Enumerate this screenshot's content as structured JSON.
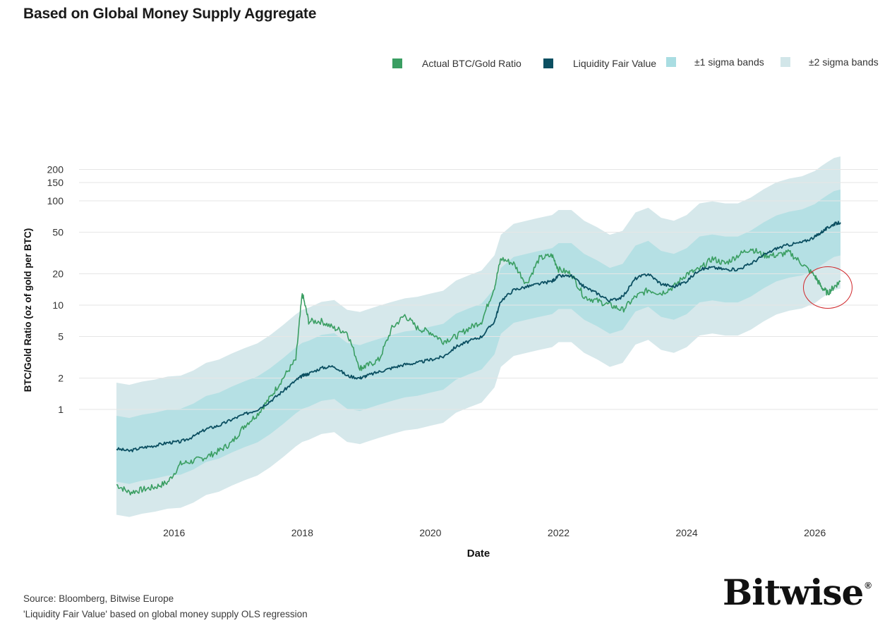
{
  "page": {
    "title": "Based on Global Money Supply Aggregate",
    "source": "Source: Bloomberg, Bitwise Europe",
    "note": "'Liquidity Fair Value' based on global money supply OLS regression",
    "logo_text": "Bitwise",
    "logo_mark": "®"
  },
  "legend": [
    {
      "label": "Actual BTC/Gold Ratio",
      "color": "#3a9e62"
    },
    {
      "label": "Liquidity Fair Value",
      "color": "#0b4f61"
    },
    {
      "label": "±1 sigma bands",
      "color": "#a9dde2"
    },
    {
      "label": "±2 sigma bands",
      "color": "#d2e6e9"
    }
  ],
  "chart_data": {
    "type": "line",
    "xlabel": "Date",
    "ylabel": "BTC/Gold Ratio (oz of gold per BTC)",
    "y_scale": "log",
    "xlim": [
      2015.0,
      2027.0
    ],
    "ylim": [
      0.1,
      250
    ],
    "x_ticks": [
      2016,
      2018,
      2020,
      2022,
      2024,
      2026
    ],
    "y_ticks": [
      1,
      2,
      5,
      10,
      20,
      50,
      100,
      150,
      200
    ],
    "grid": "horizontal",
    "legend_position": "top-right",
    "annotation": "red circle around the recent actual ratio (early 2026)",
    "x": [
      2015.1,
      2015.3,
      2015.5,
      2015.7,
      2015.9,
      2016.1,
      2016.3,
      2016.5,
      2016.7,
      2016.9,
      2017.1,
      2017.3,
      2017.5,
      2017.7,
      2017.9,
      2018.0,
      2018.1,
      2018.3,
      2018.5,
      2018.7,
      2018.9,
      2019.0,
      2019.2,
      2019.4,
      2019.6,
      2019.8,
      2020.0,
      2020.2,
      2020.4,
      2020.6,
      2020.8,
      2021.0,
      2021.1,
      2021.3,
      2021.5,
      2021.7,
      2021.9,
      2022.0,
      2022.2,
      2022.4,
      2022.6,
      2022.8,
      2023.0,
      2023.2,
      2023.4,
      2023.6,
      2023.8,
      2024.0,
      2024.2,
      2024.4,
      2024.6,
      2024.8,
      2025.0,
      2025.2,
      2025.4,
      2025.6,
      2025.8,
      2026.0,
      2026.1,
      2026.2,
      2026.3,
      2026.4
    ],
    "series": [
      {
        "name": "Actual BTC/Gold Ratio",
        "values": [
          0.19,
          0.16,
          0.17,
          0.18,
          0.2,
          0.3,
          0.32,
          0.35,
          0.4,
          0.48,
          0.7,
          0.9,
          1.3,
          2.0,
          3.0,
          13.0,
          7.0,
          7.0,
          6.0,
          5.5,
          2.5,
          2.6,
          3.0,
          6.0,
          8.0,
          6.0,
          5.5,
          4.5,
          5.0,
          6.0,
          7.0,
          15.0,
          28.0,
          25.0,
          16.0,
          28.0,
          30.0,
          22.0,
          20.0,
          12.0,
          11.0,
          10.0,
          9.0,
          12.0,
          14.0,
          13.0,
          15.0,
          20.0,
          22.0,
          28.0,
          25.0,
          30.0,
          35.0,
          30.0,
          30.0,
          32.0,
          25.0,
          19.0,
          15.0,
          13.0,
          15.0,
          17.0
        ]
      },
      {
        "name": "Liquidity Fair Value",
        "values": [
          0.42,
          0.4,
          0.43,
          0.45,
          0.48,
          0.49,
          0.55,
          0.65,
          0.7,
          0.8,
          0.9,
          1.0,
          1.2,
          1.5,
          1.9,
          2.1,
          2.2,
          2.5,
          2.6,
          2.1,
          2.0,
          2.1,
          2.3,
          2.5,
          2.7,
          2.8,
          3.0,
          3.2,
          4.0,
          4.5,
          5.0,
          7.0,
          11.0,
          14.0,
          15.0,
          16.0,
          17.0,
          19.0,
          19.0,
          15.0,
          13.0,
          11.0,
          12.0,
          18.0,
          20.0,
          16.0,
          15.0,
          17.0,
          22.0,
          23.0,
          22.0,
          22.0,
          25.0,
          30.0,
          35.0,
          38.0,
          40.0,
          45.0,
          50.0,
          55.0,
          60.0,
          62.0
        ]
      }
    ]
  }
}
